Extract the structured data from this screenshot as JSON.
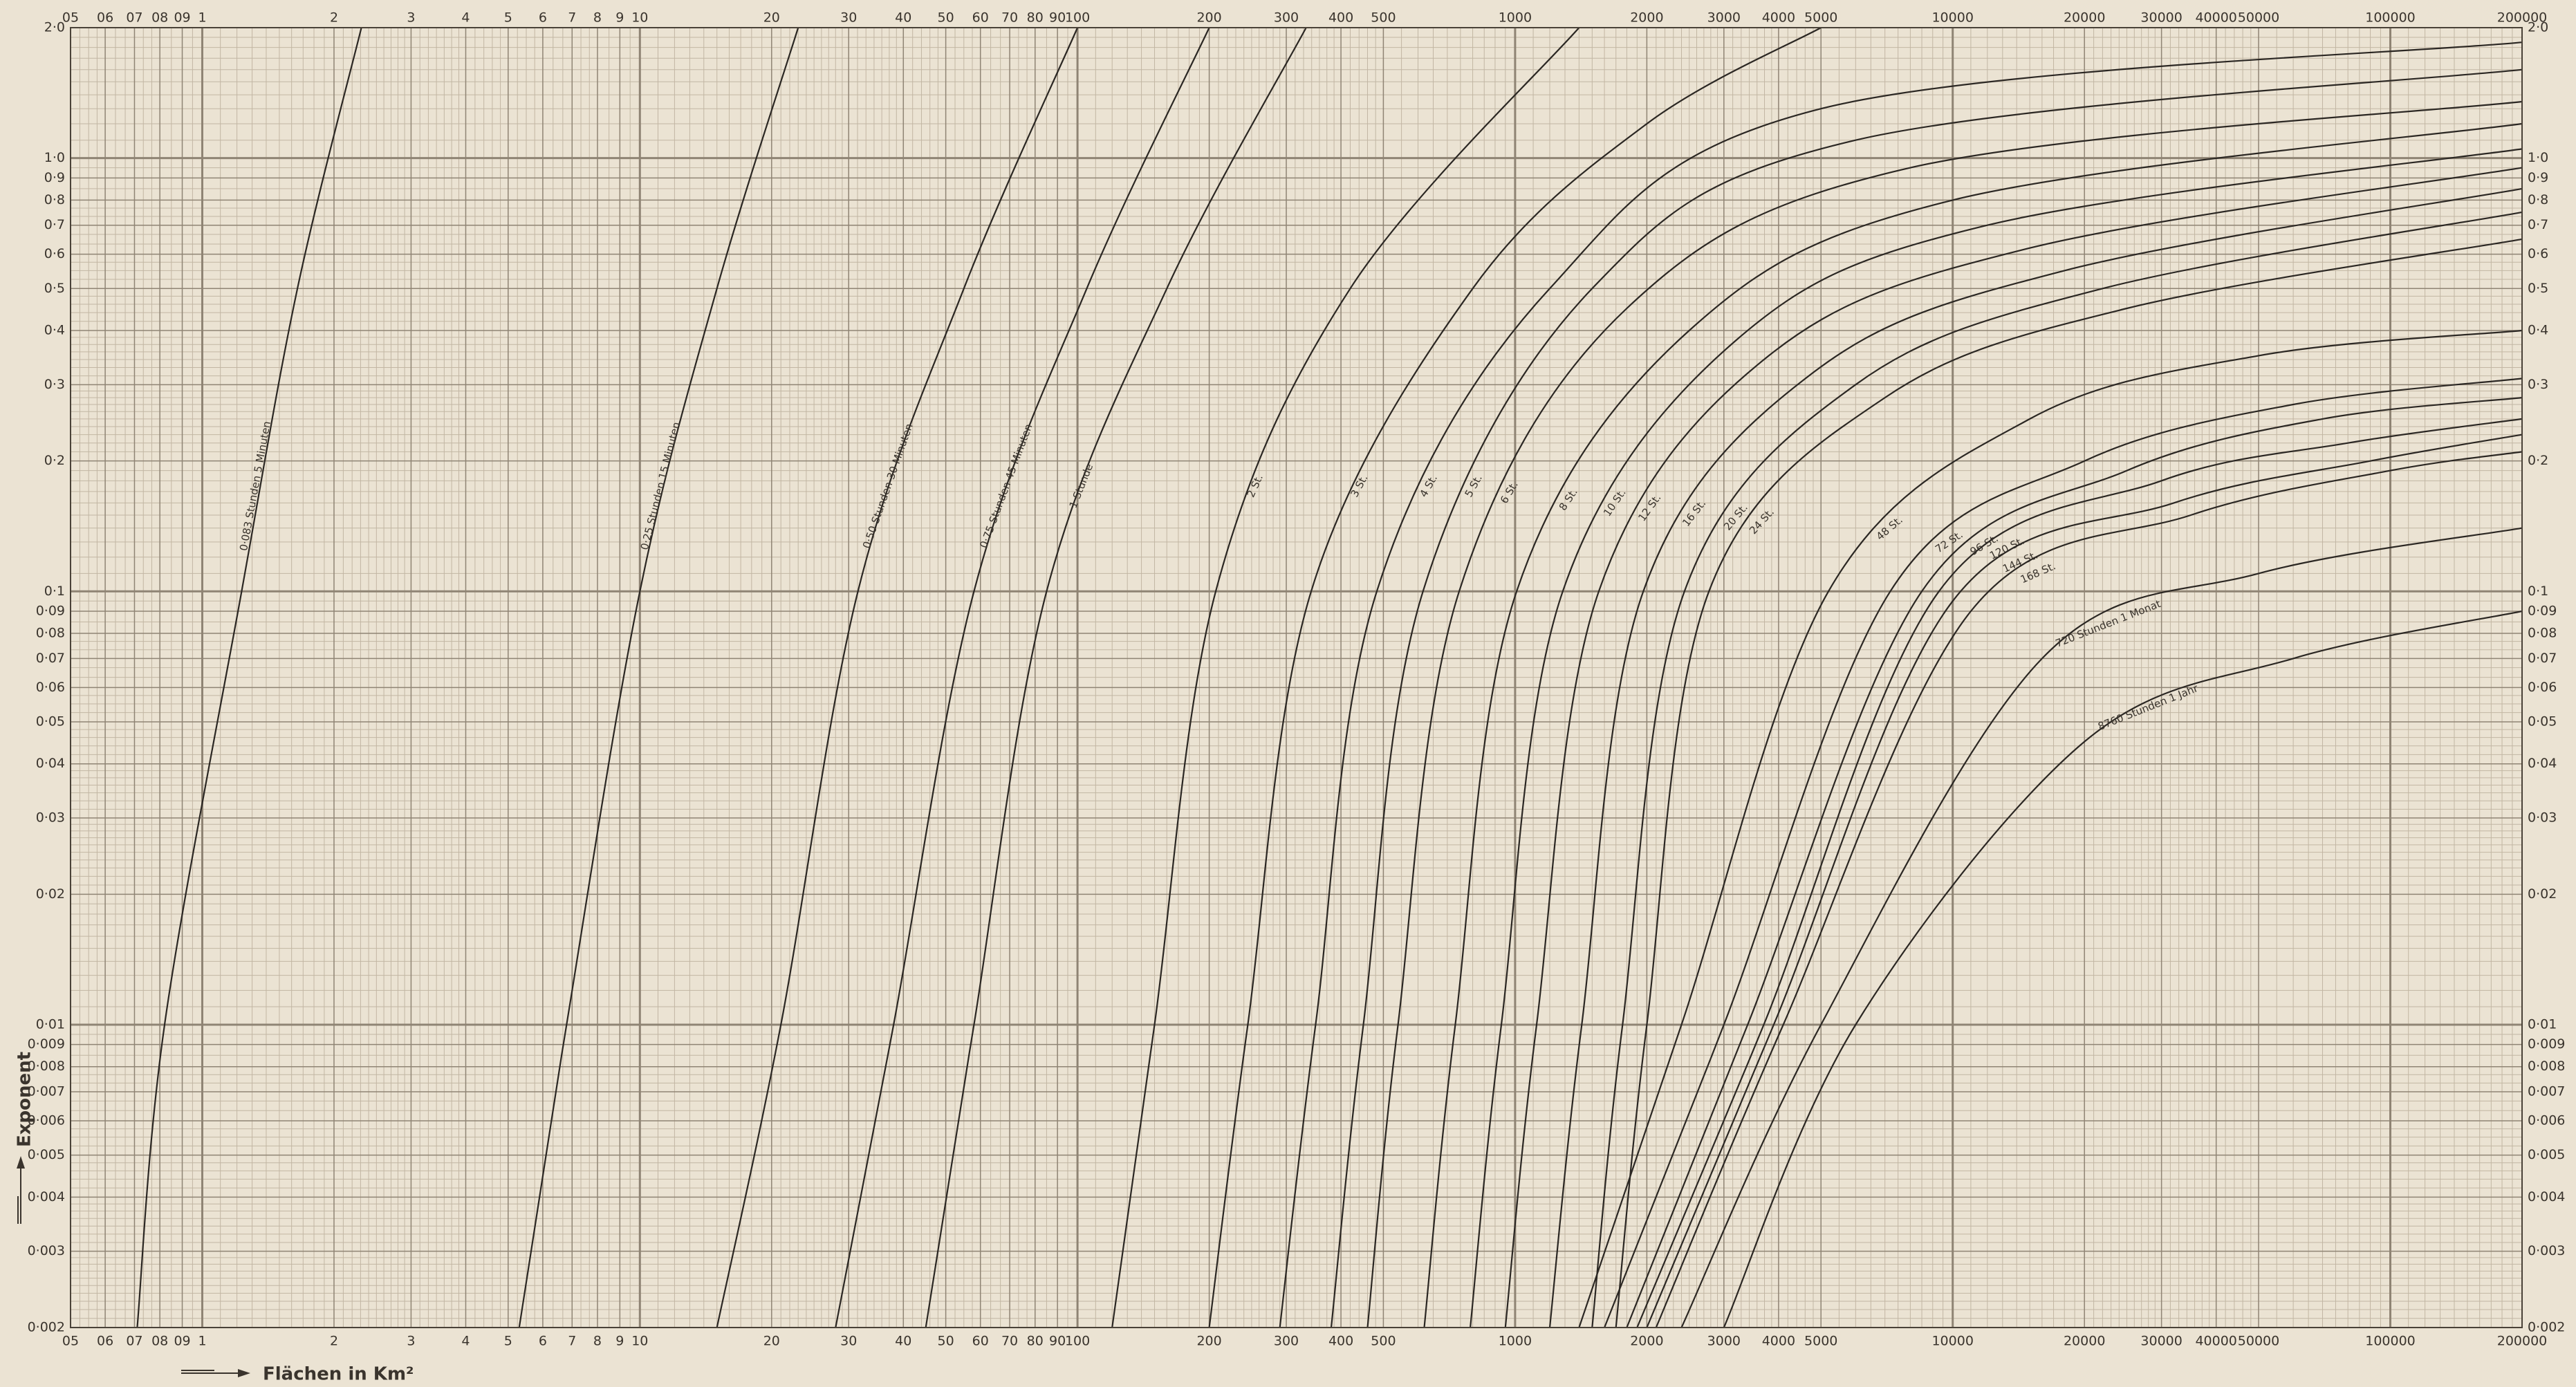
{
  "chart_data": {
    "type": "line",
    "xlabel": "Flächen in Km²",
    "ylabel": "Exponent",
    "xlog": true,
    "ylog": true,
    "grid": true,
    "color": "#2b2723",
    "xlim": [
      0.5,
      200000
    ],
    "ylim": [
      0.002,
      2
    ],
    "xticks": [
      {
        "value": 0.5,
        "label": "05"
      },
      {
        "value": 0.6,
        "label": "06"
      },
      {
        "value": 0.7,
        "label": "07"
      },
      {
        "value": 0.8,
        "label": "08"
      },
      {
        "value": 0.9,
        "label": "09"
      },
      1,
      2,
      3,
      4,
      5,
      6,
      7,
      8,
      9,
      10,
      20,
      30,
      40,
      50,
      60,
      70,
      80,
      90,
      100,
      200,
      300,
      400,
      500,
      1000,
      2000,
      3000,
      4000,
      5000,
      10000,
      20000,
      30000,
      40000,
      50000,
      100000,
      200000
    ],
    "yticks": [
      {
        "value": 0.002,
        "label": "0·002"
      },
      {
        "value": 0.003,
        "label": "0·003"
      },
      {
        "value": 0.004,
        "label": "0·004"
      },
      {
        "value": 0.005,
        "label": "0·005"
      },
      {
        "value": 0.006,
        "label": "0·006"
      },
      {
        "value": 0.007,
        "label": "0·007"
      },
      {
        "value": 0.008,
        "label": "0·008"
      },
      {
        "value": 0.009,
        "label": "0·009"
      },
      {
        "value": 0.01,
        "label": "0·01"
      },
      {
        "value": 0.02,
        "label": "0·02"
      },
      {
        "value": 0.03,
        "label": "0·03"
      },
      {
        "value": 0.04,
        "label": "0·04"
      },
      {
        "value": 0.05,
        "label": "0·05"
      },
      {
        "value": 0.06,
        "label": "0·06"
      },
      {
        "value": 0.07,
        "label": "0·07"
      },
      {
        "value": 0.08,
        "label": "0·08"
      },
      {
        "value": 0.09,
        "label": "0·09"
      },
      {
        "value": 0.1,
        "label": "0·1"
      },
      {
        "value": 0.2,
        "label": "0·2"
      },
      {
        "value": 0.3,
        "label": "0·3"
      },
      {
        "value": 0.4,
        "label": "0·4"
      },
      {
        "value": 0.5,
        "label": "0·5"
      },
      {
        "value": 0.6,
        "label": "0·6"
      },
      {
        "value": 0.7,
        "label": "0·7"
      },
      {
        "value": 0.8,
        "label": "0·8"
      },
      {
        "value": 0.9,
        "label": "0·9"
      },
      {
        "value": 1,
        "label": "1·0"
      },
      {
        "value": 2,
        "label": "2·0"
      }
    ],
    "series": [
      {
        "name": "0·083 Stunden 5 Minuten",
        "x": [
          0.71,
          0.82,
          1.23,
          1.65,
          2.31
        ],
        "values": [
          0.002,
          0.01,
          0.1,
          0.5,
          2
        ]
      },
      {
        "name": "0·25 Stunden 15 Minuten",
        "x": [
          5.3,
          6.8,
          10,
          15,
          23
        ],
        "values": [
          0.002,
          0.01,
          0.1,
          0.5,
          2
        ]
      },
      {
        "name": "0·50 Stunden 30 Minuten",
        "x": [
          15,
          21,
          31.5,
          55,
          100
        ],
        "values": [
          0.002,
          0.01,
          0.1,
          0.5,
          2
        ]
      },
      {
        "name": "0·75 Stunden 45 Minuten",
        "x": [
          28,
          38,
          58,
          105,
          200
        ],
        "values": [
          0.002,
          0.01,
          0.1,
          0.5,
          2
        ]
      },
      {
        "name": "1 Stunde",
        "x": [
          45,
          58,
          85,
          160,
          333
        ],
        "values": [
          0.002,
          0.01,
          0.1,
          0.5,
          2
        ]
      },
      {
        "name": "2 St.",
        "x": [
          120,
          150,
          207,
          420,
          1400
        ],
        "values": [
          0.002,
          0.01,
          0.1,
          0.5,
          2
        ]
      },
      {
        "name": "3 St.",
        "x": [
          200,
          245,
          342,
          800,
          2000,
          5000
        ],
        "values": [
          0.002,
          0.01,
          0.1,
          0.5,
          1.2,
          2
        ]
      },
      {
        "name": "4 St.",
        "x": [
          290,
          350,
          483,
          1200,
          5000,
          200000
        ],
        "values": [
          0.002,
          0.01,
          0.1,
          0.5,
          1.3,
          1.85
        ]
      },
      {
        "name": "5 St.",
        "x": [
          380,
          450,
          616,
          1500,
          6000,
          200000
        ],
        "values": [
          0.002,
          0.01,
          0.1,
          0.5,
          1.1,
          1.6
        ]
      },
      {
        "name": "6 St.",
        "x": [
          460,
          540,
          745,
          1800,
          8000,
          200000
        ],
        "values": [
          0.002,
          0.01,
          0.1,
          0.45,
          0.95,
          1.35
        ]
      },
      {
        "name": "8 St.",
        "x": [
          620,
          730,
          1008,
          2500,
          10000,
          200000
        ],
        "values": [
          0.002,
          0.01,
          0.1,
          0.4,
          0.8,
          1.2
        ]
      },
      {
        "name": "10 St.",
        "x": [
          790,
          930,
          1285,
          3200,
          12000,
          200000
        ],
        "values": [
          0.002,
          0.01,
          0.1,
          0.38,
          0.7,
          1.05
        ]
      },
      {
        "name": "12 St.",
        "x": [
          950,
          1120,
          1553,
          3800,
          15000,
          200000
        ],
        "values": [
          0.002,
          0.01,
          0.1,
          0.35,
          0.62,
          0.95
        ]
      },
      {
        "name": "16 St.",
        "x": [
          1200,
          1420,
          1963,
          4800,
          18000,
          200000
        ],
        "values": [
          0.002,
          0.01,
          0.1,
          0.32,
          0.55,
          0.85
        ]
      },
      {
        "name": "20 St.",
        "x": [
          1500,
          1760,
          2438,
          6000,
          22000,
          200000
        ],
        "values": [
          0.002,
          0.01,
          0.1,
          0.3,
          0.5,
          0.75
        ]
      },
      {
        "name": "24 St.",
        "x": [
          1700,
          2000,
          2773,
          7000,
          25000,
          200000
        ],
        "values": [
          0.002,
          0.01,
          0.1,
          0.28,
          0.45,
          0.65
        ]
      },
      {
        "name": "48 St.",
        "x": [
          1400,
          2400,
          5200,
          15000,
          50000,
          200000
        ],
        "values": [
          0.002,
          0.01,
          0.1,
          0.25,
          0.35,
          0.4
        ]
      },
      {
        "name": "72 St.",
        "x": [
          1600,
          3000,
          7200,
          20000,
          60000,
          200000
        ],
        "values": [
          0.002,
          0.01,
          0.1,
          0.2,
          0.27,
          0.31
        ]
      },
      {
        "name": "96 St.",
        "x": [
          1800,
          3400,
          8500,
          25000,
          70000,
          200000
        ],
        "values": [
          0.002,
          0.01,
          0.1,
          0.19,
          0.25,
          0.28
        ]
      },
      {
        "name": "120 St.",
        "x": [
          1900,
          3700,
          9300,
          30000,
          80000,
          200000
        ],
        "values": [
          0.002,
          0.01,
          0.1,
          0.18,
          0.22,
          0.25
        ]
      },
      {
        "name": "144 St.",
        "x": [
          2000,
          3900,
          10000,
          32000,
          90000,
          200000
        ],
        "values": [
          0.002,
          0.01,
          0.095,
          0.16,
          0.2,
          0.23
        ]
      },
      {
        "name": "168 St.",
        "x": [
          2100,
          4100,
          11000,
          35000,
          100000,
          200000
        ],
        "values": [
          0.002,
          0.01,
          0.09,
          0.15,
          0.19,
          0.21
        ]
      },
      {
        "name": "720 Stunden 1 Monat",
        "x": [
          2400,
          5000,
          16000,
          50000,
          200000
        ],
        "values": [
          0.002,
          0.01,
          0.07,
          0.11,
          0.14
        ]
      },
      {
        "name": "8760 Stunden 1 Jahr",
        "x": [
          3000,
          6000,
          20000,
          60000,
          200000
        ],
        "values": [
          0.002,
          0.01,
          0.045,
          0.07,
          0.09
        ]
      }
    ]
  }
}
